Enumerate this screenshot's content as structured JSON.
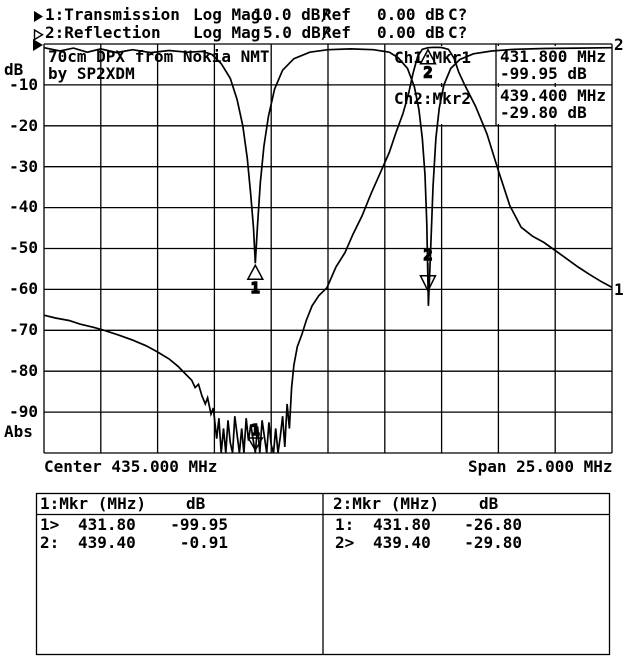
{
  "header": {
    "line1": {
      "label": "1:Transmission",
      "format": "Log Mag",
      "scale": "10.0 dB/",
      "ref_label": "Ref",
      "ref_value": "0.00 dB",
      "status": "C?"
    },
    "line2": {
      "label": "2:Reflection",
      "format": "Log Mag",
      "scale": "5.0 dB/",
      "ref_label": "Ref",
      "ref_value": "0.00 dB",
      "status": "C?"
    }
  },
  "graph": {
    "unit_label": "dB",
    "abs_label": "Abs",
    "yticks": [
      "-10",
      "-20",
      "-30",
      "-40",
      "-50",
      "-60",
      "-70",
      "-80",
      "-90"
    ],
    "title1": "70cm DPX from Nokia NMT",
    "title2": "by SP2XDM",
    "readouts": [
      {
        "label": "Ch1:Mkr1",
        "freq": "431.800 MHz",
        "level": "-99.95 dB"
      },
      {
        "label": "Ch2:Mkr2",
        "freq": "439.400 MHz",
        "level": "-29.80 dB"
      }
    ],
    "center_label": "Center 435.000 MHz",
    "span_label": "Span 25.000 MHz",
    "edge_trace1": "1",
    "edge_trace2": "2"
  },
  "tables": [
    {
      "title": "1:Mkr (MHz)",
      "col": "dB",
      "rows": [
        {
          "sel": "1>",
          "freq": "431.80",
          "db": "-99.95"
        },
        {
          "sel": "2:",
          "freq": "439.40",
          "db": "-0.91"
        }
      ]
    },
    {
      "title": "2:Mkr (MHz)",
      "col": "dB",
      "rows": [
        {
          "sel": "1:",
          "freq": "431.80",
          "db": "-26.80"
        },
        {
          "sel": "2>",
          "freq": "439.40",
          "db": "-29.80"
        }
      ]
    }
  ],
  "chart_data": {
    "type": "line",
    "title": "70cm DPX from Nokia NMT by SP2XDM",
    "x_axis": {
      "label": "MHz",
      "center_mhz": 435.0,
      "span_mhz": 25.0,
      "min": 422.5,
      "max": 447.5
    },
    "y_axis": {
      "ch1": {
        "name": "Transmission",
        "scale_db_per_div": 10.0,
        "ref_db": 0.0,
        "min": -100,
        "max": 0
      },
      "ch2": {
        "name": "Reflection",
        "scale_db_per_div": 5.0,
        "ref_db": 0.0,
        "min": -50,
        "max": 0
      }
    },
    "grid": {
      "x_div": 10,
      "y_div": 10
    },
    "series": [
      {
        "name": "Transmission",
        "channel": 1,
        "points": [
          [
            422.5,
            -66.3
          ],
          [
            423.0,
            -67.0
          ],
          [
            423.6,
            -67.6
          ],
          [
            424.1,
            -68.5
          ],
          [
            424.7,
            -69.3
          ],
          [
            425.2,
            -70.1
          ],
          [
            425.8,
            -71.2
          ],
          [
            426.4,
            -72.4
          ],
          [
            427.0,
            -73.8
          ],
          [
            427.5,
            -75.3
          ],
          [
            428.0,
            -77.0
          ],
          [
            428.4,
            -78.8
          ],
          [
            428.75,
            -80.8
          ],
          [
            429.0,
            -82.2
          ],
          [
            429.15,
            -84.0
          ],
          [
            429.3,
            -83.2
          ],
          [
            429.45,
            -86.0
          ],
          [
            429.6,
            -88.0
          ],
          [
            429.7,
            -86.5
          ],
          [
            429.85,
            -90.5
          ],
          [
            429.95,
            -89.0
          ],
          [
            430.1,
            -96.5
          ],
          [
            430.2,
            -91.5
          ],
          [
            430.3,
            -100.5
          ],
          [
            430.4,
            -94.0
          ],
          [
            430.5,
            -101.0
          ],
          [
            430.6,
            -92.0
          ],
          [
            430.7,
            -97.5
          ],
          [
            430.8,
            -101.5
          ],
          [
            430.9,
            -91.0
          ],
          [
            431.0,
            -95.5
          ],
          [
            431.1,
            -100.5
          ],
          [
            431.2,
            -94.0
          ],
          [
            431.3,
            -101.0
          ],
          [
            431.4,
            -91.5
          ],
          [
            431.5,
            -97.0
          ],
          [
            431.6,
            -93.0
          ],
          [
            431.7,
            -96.5
          ],
          [
            431.8,
            -99.95
          ],
          [
            431.9,
            -93.5
          ],
          [
            432.0,
            -101.0
          ],
          [
            432.1,
            -92.0
          ],
          [
            432.2,
            -96.0
          ],
          [
            432.3,
            -100.5
          ],
          [
            432.4,
            -92.5
          ],
          [
            432.5,
            -98.0
          ],
          [
            432.6,
            -101.0
          ],
          [
            432.7,
            -94.0
          ],
          [
            432.8,
            -101.5
          ],
          [
            432.9,
            -96.0
          ],
          [
            433.0,
            -91.0
          ],
          [
            433.1,
            -98.5
          ],
          [
            433.2,
            -88.0
          ],
          [
            433.3,
            -94.0
          ],
          [
            433.4,
            -84.0
          ],
          [
            433.5,
            -78.5
          ],
          [
            433.65,
            -74.0
          ],
          [
            433.85,
            -71.0
          ],
          [
            434.05,
            -67.5
          ],
          [
            434.3,
            -64.0
          ],
          [
            434.6,
            -61.5
          ],
          [
            434.95,
            -59.6
          ],
          [
            435.35,
            -54.5
          ],
          [
            435.75,
            -51.0
          ],
          [
            436.1,
            -46.5
          ],
          [
            436.5,
            -42.0
          ],
          [
            436.9,
            -36.5
          ],
          [
            437.3,
            -31.5
          ],
          [
            437.7,
            -26.5
          ],
          [
            438.0,
            -21.5
          ],
          [
            438.3,
            -17.0
          ],
          [
            438.55,
            -12.0
          ],
          [
            438.75,
            -7.0
          ],
          [
            438.95,
            -3.0
          ],
          [
            439.15,
            -1.3
          ],
          [
            439.4,
            -0.91
          ],
          [
            439.7,
            -0.8
          ],
          [
            440.0,
            -0.85
          ],
          [
            440.3,
            -1.3
          ],
          [
            440.55,
            -3.5
          ],
          [
            440.75,
            -6.8
          ],
          [
            441.0,
            -9.8
          ],
          [
            441.5,
            -15.3
          ],
          [
            442.0,
            -22.0
          ],
          [
            442.5,
            -31.0
          ],
          [
            443.0,
            -39.5
          ],
          [
            443.5,
            -44.8
          ],
          [
            444.0,
            -47.0
          ],
          [
            444.5,
            -48.5
          ],
          [
            445.0,
            -50.5
          ],
          [
            445.5,
            -52.5
          ],
          [
            446.0,
            -54.5
          ],
          [
            446.5,
            -56.3
          ],
          [
            447.0,
            -58.0
          ],
          [
            447.5,
            -59.5
          ]
        ]
      },
      {
        "name": "Reflection",
        "channel": 2,
        "points": [
          [
            422.5,
            -0.45
          ],
          [
            423.2,
            -0.85
          ],
          [
            423.8,
            -0.5
          ],
          [
            424.4,
            -1.0
          ],
          [
            425.0,
            -0.6
          ],
          [
            425.7,
            -1.05
          ],
          [
            426.4,
            -0.7
          ],
          [
            427.2,
            -1.05
          ],
          [
            428.0,
            -0.8
          ],
          [
            428.8,
            -1.0
          ],
          [
            429.5,
            -0.9
          ],
          [
            429.9,
            -1.3
          ],
          [
            430.3,
            -2.4
          ],
          [
            430.7,
            -4.2
          ],
          [
            431.0,
            -6.8
          ],
          [
            431.25,
            -10.0
          ],
          [
            431.45,
            -14.0
          ],
          [
            431.6,
            -18.5
          ],
          [
            431.72,
            -22.5
          ],
          [
            431.8,
            -26.8
          ],
          [
            431.9,
            -22.0
          ],
          [
            432.02,
            -17.0
          ],
          [
            432.18,
            -12.5
          ],
          [
            432.38,
            -8.8
          ],
          [
            432.65,
            -5.5
          ],
          [
            433.0,
            -3.2
          ],
          [
            433.5,
            -1.8
          ],
          [
            434.2,
            -1.0
          ],
          [
            435.0,
            -0.7
          ],
          [
            436.0,
            -0.6
          ],
          [
            437.0,
            -0.7
          ],
          [
            437.7,
            -1.0
          ],
          [
            438.1,
            -1.7
          ],
          [
            438.5,
            -3.0
          ],
          [
            438.8,
            -5.2
          ],
          [
            439.0,
            -8.0
          ],
          [
            439.15,
            -11.5
          ],
          [
            439.27,
            -16.0
          ],
          [
            439.35,
            -22.0
          ],
          [
            439.42,
            -32.0
          ],
          [
            439.52,
            -25.0
          ],
          [
            439.62,
            -17.5
          ],
          [
            439.75,
            -11.5
          ],
          [
            439.9,
            -7.8
          ],
          [
            440.1,
            -5.0
          ],
          [
            440.4,
            -3.0
          ],
          [
            440.8,
            -1.9
          ],
          [
            441.4,
            -1.2
          ],
          [
            442.2,
            -0.85
          ],
          [
            443.2,
            -0.65
          ],
          [
            444.5,
            -0.55
          ],
          [
            446.0,
            -0.5
          ],
          [
            447.5,
            -0.45
          ]
        ]
      }
    ],
    "markers": [
      {
        "channel": 1,
        "n": "1",
        "freq_mhz": 431.8,
        "db": -99.95,
        "glyph": "tri-down"
      },
      {
        "channel": 1,
        "n": "2",
        "freq_mhz": 439.4,
        "db": -0.91,
        "glyph": "tri-up"
      },
      {
        "channel": 2,
        "n": "1",
        "freq_mhz": 431.8,
        "db": -26.8,
        "glyph": "tri-up"
      },
      {
        "channel": 2,
        "n": "2",
        "freq_mhz": 439.4,
        "db": -29.8,
        "glyph": "arrow-down"
      }
    ]
  }
}
